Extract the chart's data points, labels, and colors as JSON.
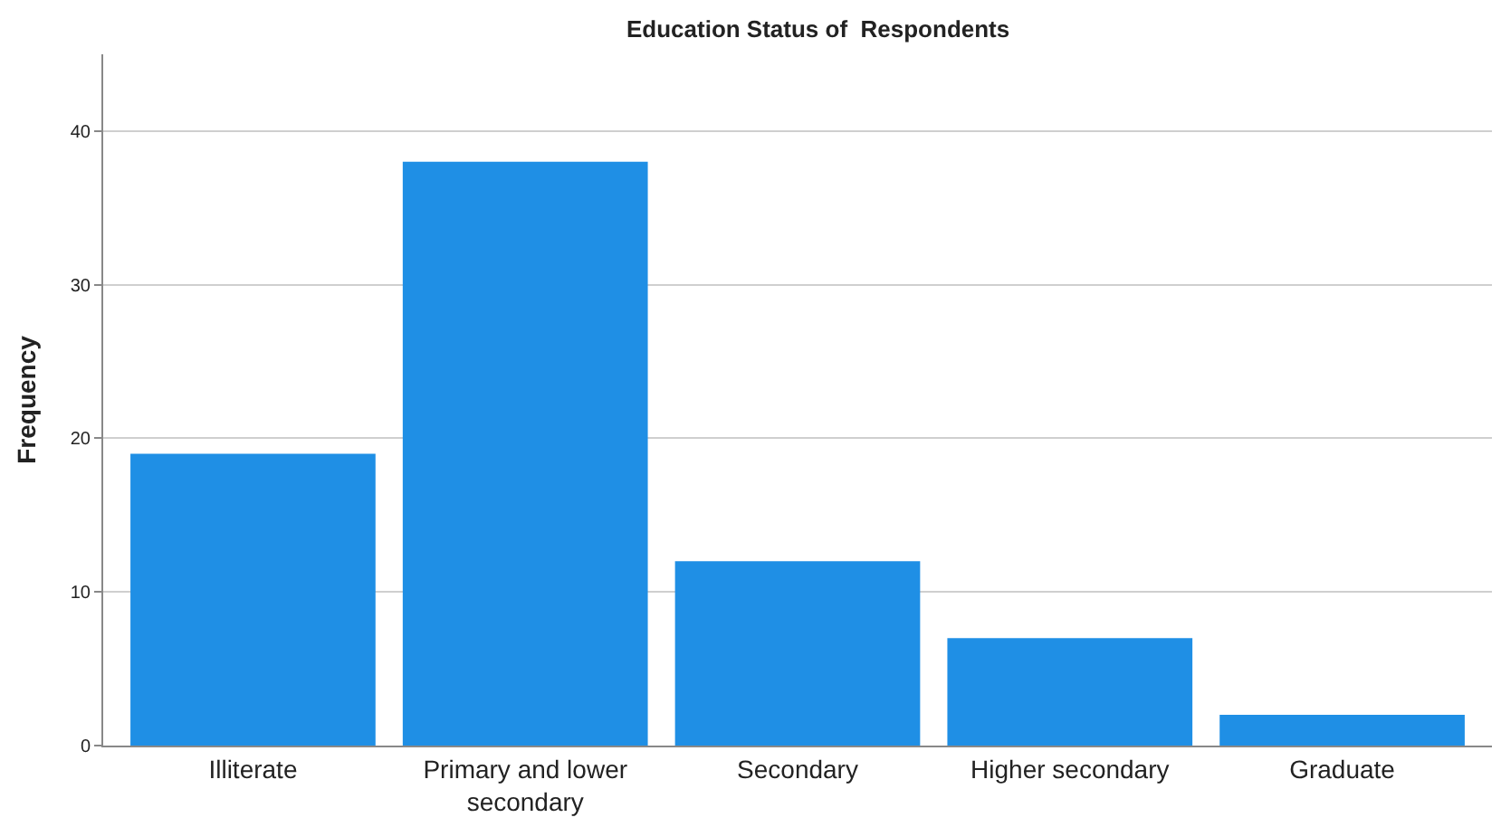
{
  "chart_data": {
    "type": "bar",
    "title": "Education Status of  Respondents",
    "ylabel": "Frequency",
    "categories": [
      "Illiterate",
      "Primary and lower secondary",
      "Secondary",
      "Higher secondary",
      "Graduate"
    ],
    "values": [
      19,
      38,
      12,
      7,
      2
    ],
    "color": "#1f8fe5",
    "ylim": [
      0,
      45
    ],
    "yticks": [
      0,
      10,
      20,
      30,
      40
    ],
    "grid": "y"
  }
}
